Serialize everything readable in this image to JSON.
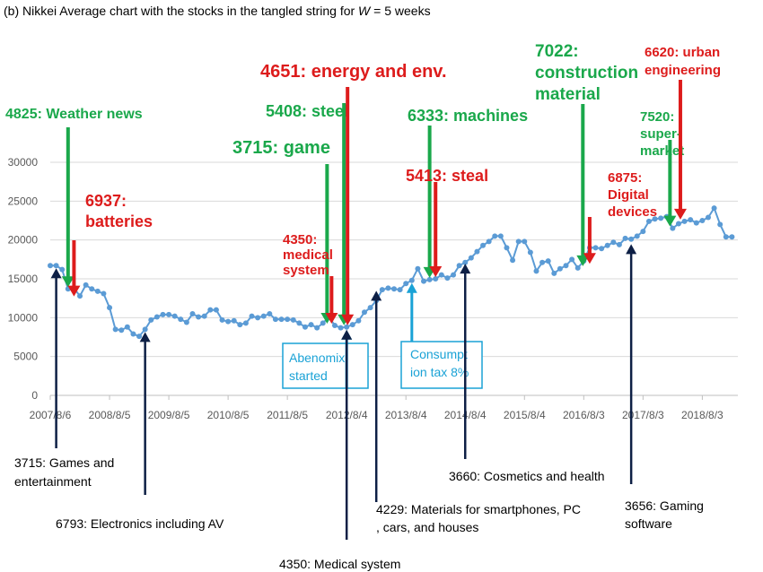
{
  "caption": "(b) Nikkei Average chart with the stocks in the tangled string for W = 5 weeks",
  "chart_data": {
    "type": "line",
    "title": "(b) Nikkei Average chart with the stocks in the tangled string for W = 5 weeks",
    "y_ticks": [
      "0",
      "5000",
      "10000",
      "15000",
      "20000",
      "25000",
      "30000"
    ],
    "ylim": [
      0,
      30000
    ],
    "grid": true,
    "x_ticks": [
      "2007/8/6",
      "2008/8/5",
      "2009/8/5",
      "2010/8/5",
      "2011/8/5",
      "2012/8/4",
      "2013/8/4",
      "2014/8/4",
      "2015/8/4",
      "2016/8/3",
      "2017/8/3",
      "2018/8/3"
    ],
    "series": [
      {
        "color": "#5b9bd5",
        "x": [
          2007.6,
          2007.7,
          2007.8,
          2007.9,
          2008.0,
          2008.1,
          2008.2,
          2008.3,
          2008.4,
          2008.5,
          2008.6,
          2008.7,
          2008.8,
          2008.9,
          2009.0,
          2009.1,
          2009.2,
          2009.3,
          2009.4,
          2009.5,
          2009.6,
          2009.7,
          2009.8,
          2009.9,
          2010.0,
          2010.1,
          2010.2,
          2010.3,
          2010.4,
          2010.5,
          2010.6,
          2010.7,
          2010.8,
          2010.9,
          2011.0,
          2011.1,
          2011.2,
          2011.3,
          2011.4,
          2011.5,
          2011.6,
          2011.7,
          2011.8,
          2011.9,
          2012.0,
          2012.1,
          2012.2,
          2012.3,
          2012.4,
          2012.5,
          2012.6,
          2012.7,
          2012.8,
          2012.9,
          2013.0,
          2013.1,
          2013.2,
          2013.3,
          2013.4,
          2013.5,
          2013.6,
          2013.7,
          2013.8,
          2013.9,
          2014.0,
          2014.1,
          2014.2,
          2014.3,
          2014.4,
          2014.5,
          2014.6,
          2014.7,
          2014.8,
          2014.9,
          2015.0,
          2015.1,
          2015.2,
          2015.3,
          2015.4,
          2015.5,
          2015.6,
          2015.7,
          2015.8,
          2015.9,
          2016.0,
          2016.1,
          2016.2,
          2016.3,
          2016.4,
          2016.5,
          2016.6,
          2016.7,
          2016.8,
          2016.9,
          2017.0,
          2017.1,
          2017.2,
          2017.3,
          2017.4,
          2017.5,
          2017.6,
          2017.7,
          2017.8,
          2017.9,
          2018.0,
          2018.1,
          2018.2,
          2018.3,
          2018.4,
          2018.5,
          2018.6,
          2018.7,
          2018.8,
          2018.9,
          2019.0,
          2019.1
        ],
        "values": [
          16700,
          16700,
          16200,
          13700,
          13800,
          12800,
          14200,
          13700,
          13400,
          13100,
          11300,
          8500,
          8400,
          8800,
          7900,
          7600,
          8500,
          9700,
          10100,
          10400,
          10400,
          10200,
          9800,
          9400,
          10500,
          10100,
          10200,
          11000,
          11000,
          9700,
          9500,
          9600,
          9100,
          9300,
          10200,
          10000,
          10200,
          10500,
          9800,
          9800,
          9800,
          9700,
          9300,
          8800,
          9100,
          8700,
          9300,
          10100,
          9000,
          8700,
          8800,
          9100,
          9600,
          10700,
          11300,
          12200,
          13600,
          13800,
          13700,
          13600,
          14400,
          14800,
          16300,
          14700,
          14900,
          15000,
          15500,
          15100,
          15500,
          16700,
          17100,
          17700,
          18500,
          19300,
          19800,
          20500,
          20500,
          19000,
          17400,
          19800,
          19800,
          18400,
          16000,
          17100,
          17300,
          15700,
          16300,
          16700,
          17500,
          16400,
          17300,
          19000,
          19000,
          18900,
          19300,
          19700,
          19400,
          20200,
          20100,
          20500,
          21100,
          22400,
          22700,
          22800,
          23000,
          21500,
          22100,
          22400,
          22600,
          22200,
          22500,
          22900,
          24100,
          22000,
          20400,
          20400
        ]
      }
    ],
    "annotations": [
      {
        "text": "4825: Weather news",
        "color": "green",
        "x": 2007.9,
        "y": 13700
      },
      {
        "text": "6937: batteries",
        "color": "red",
        "x": 2008.0,
        "y": 12500
      },
      {
        "text": "3715: game",
        "color": "green",
        "x": 2012.3,
        "y": 9000
      },
      {
        "text": "4350: medical system",
        "color": "red",
        "x": 2012.3,
        "y": 9000
      },
      {
        "text": "5408: steel",
        "color": "green",
        "x": 2012.6,
        "y": 8800
      },
      {
        "text": "4651: energy and env.",
        "color": "red",
        "x": 2012.6,
        "y": 8800
      },
      {
        "text": "6333: machines",
        "color": "green",
        "x": 2014.0,
        "y": 14900
      },
      {
        "text": "5413: steal",
        "color": "red",
        "x": 2014.1,
        "y": 15000
      },
      {
        "text": "7022: construction material",
        "color": "green",
        "x": 2016.6,
        "y": 16400
      },
      {
        "text": "6875: Digital devices",
        "color": "red",
        "x": 2016.7,
        "y": 16700
      },
      {
        "text": "7520: super-market",
        "color": "green",
        "x": 2018.1,
        "y": 21500
      },
      {
        "text": "6620: urban engineering",
        "color": "red",
        "x": 2018.2,
        "y": 22400
      },
      {
        "text": "Abenomix started",
        "color": "blue",
        "x": 2012.6,
        "y": 8800
      },
      {
        "text": "Consumption tax 8%",
        "color": "blue",
        "x": 2013.7,
        "y": 14800
      },
      {
        "text": "3715: Games and entertainment",
        "color": "black",
        "x": 2007.7,
        "y": 16700
      },
      {
        "text": "6793: Electronics including AV",
        "color": "black",
        "x": 2009.2,
        "y": 8500
      },
      {
        "text": "4350: Medical system",
        "color": "black",
        "x": 2012.6,
        "y": 8800
      },
      {
        "text": "4229: Materials for smartphones, PC, cars, and houses",
        "color": "black",
        "x": 2013.1,
        "y": 13800
      },
      {
        "text": "3660: Cosmetics and health",
        "color": "black",
        "x": 2014.6,
        "y": 17300
      },
      {
        "text": "3656: Gaming software",
        "color": "black",
        "x": 2017.4,
        "y": 19800
      }
    ]
  }
}
